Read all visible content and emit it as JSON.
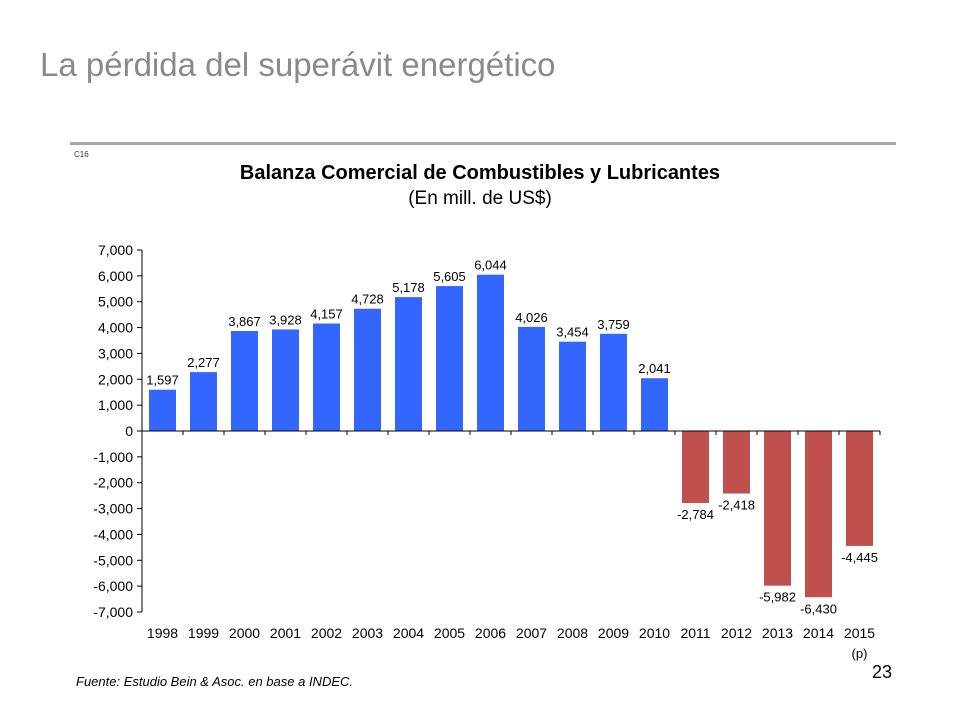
{
  "slide": {
    "title": "La pérdida del superávit energético",
    "code": "C16",
    "source": "Fuente: Estudio Bein & Asoc. en base a INDEC.",
    "page_number": "23"
  },
  "chart_data": {
    "type": "bar",
    "title": "Balanza Comercial de Combustibles y Lubricantes",
    "subtitle": "(En mill. de US$)",
    "categories": [
      "1998",
      "1999",
      "2000",
      "2001",
      "2002",
      "2003",
      "2004",
      "2005",
      "2006",
      "2007",
      "2008",
      "2009",
      "2010",
      "2011",
      "2012",
      "2013",
      "2014",
      "2015"
    ],
    "values": [
      1597,
      2277,
      3867,
      3928,
      4157,
      4728,
      5178,
      5605,
      6044,
      4026,
      3454,
      3759,
      2041,
      -2784,
      -2418,
      -5982,
      -6430,
      -4445
    ],
    "value_labels": [
      "1,597",
      "2,277",
      "3,867",
      "3,928",
      "4,157",
      "4,728",
      "5,178",
      "5,605",
      "6,044",
      "4,026",
      "3,454",
      "3,759",
      "2,041",
      "-2,784",
      "-2,418",
      "-5,982",
      "-6,430",
      "-4,445"
    ],
    "y_ticks": [
      7000,
      6000,
      5000,
      4000,
      3000,
      2000,
      1000,
      0,
      -1000,
      -2000,
      -3000,
      -4000,
      -5000,
      -6000,
      -7000
    ],
    "y_tick_labels": [
      "7,000",
      "6,000",
      "5,000",
      "4,000",
      "3,000",
      "2,000",
      "1,000",
      "0",
      "-1,000",
      "-2,000",
      "-3,000",
      "-4,000",
      "-5,000",
      "-6,000",
      "-7,000"
    ],
    "ylim": [
      -7000,
      7000
    ],
    "category_note": "(p)",
    "colors": {
      "positive": "#3366ff",
      "negative": "#c0504d"
    },
    "grid": false
  }
}
